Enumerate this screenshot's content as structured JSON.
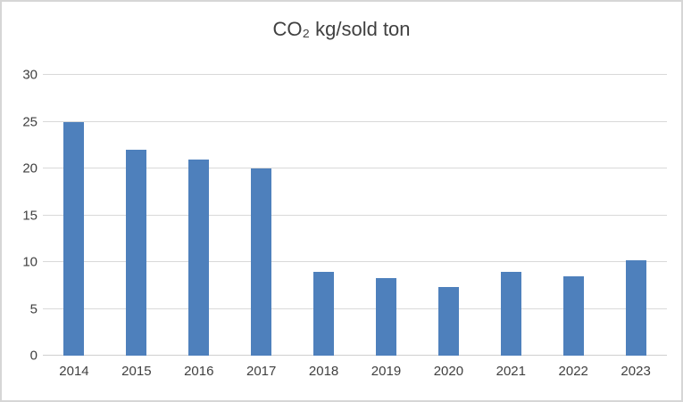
{
  "chart_data": {
    "type": "bar",
    "title": "CO₂ kg/sold ton",
    "categories": [
      "2014",
      "2015",
      "2016",
      "2017",
      "2018",
      "2019",
      "2020",
      "2021",
      "2022",
      "2023"
    ],
    "values": [
      25,
      22,
      21,
      20,
      9,
      8.3,
      7.3,
      9,
      8.5,
      10.2
    ],
    "xlabel": "",
    "ylabel": "",
    "ylim": [
      0,
      30
    ],
    "yticks": [
      0,
      5,
      10,
      15,
      20,
      25,
      30
    ],
    "grid": true,
    "legend": false,
    "colors": {
      "bar": "#4e80bc",
      "gridline": "#d9d9d9",
      "axis_line": "#cfcfcf",
      "text": "#404040",
      "frame_border": "#d6d6d6",
      "background": "#ffffff"
    }
  }
}
